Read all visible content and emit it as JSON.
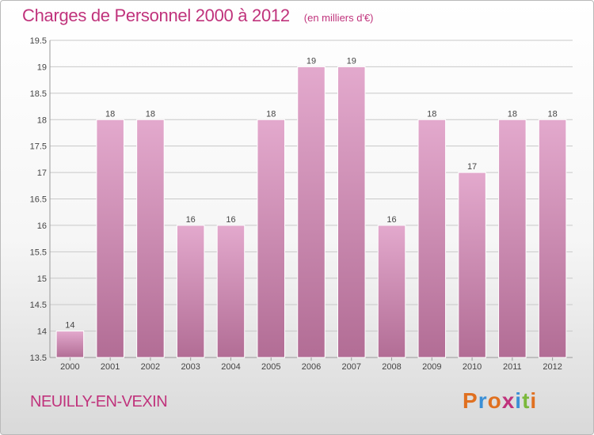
{
  "header": {
    "title": "Charges de Personnel 2000 à 2012",
    "unit": "(en milliers d'€)"
  },
  "footer": {
    "commune": "NEUILLY-EN-VEXIN",
    "logo_text": "Proxiti",
    "logo_colors": [
      "#e07020",
      "#3a8fd6",
      "#e07020",
      "#c0337c",
      "#3a8fd6",
      "#7bb83a",
      "#e07020"
    ]
  },
  "colors": {
    "bar_top": "#e3a9cd",
    "bar_bottom": "#b26d95",
    "grid": "#c8c8c8",
    "accent": "#c0337c"
  },
  "chart_data": {
    "type": "bar",
    "title": "Charges de Personnel 2000 à 2012",
    "subtitle": "(en milliers d'€)",
    "categories": [
      "2000",
      "2001",
      "2002",
      "2003",
      "2004",
      "2005",
      "2006",
      "2007",
      "2008",
      "2009",
      "2010",
      "2011",
      "2012"
    ],
    "values": [
      14,
      18,
      18,
      16,
      16,
      18,
      19,
      19,
      16,
      18,
      17,
      18,
      18
    ],
    "value_labels": [
      "14",
      "18",
      "18",
      "16",
      "16",
      "18",
      "19",
      "19",
      "16",
      "18",
      "17",
      "18",
      "18"
    ],
    "ylim": [
      13.5,
      19.5
    ],
    "yticks": [
      "13.5",
      "14",
      "14.5",
      "15",
      "15.5",
      "16",
      "16.5",
      "17",
      "17.5",
      "18",
      "18.5",
      "19",
      "19.5"
    ],
    "grid": true,
    "legend": "none"
  }
}
